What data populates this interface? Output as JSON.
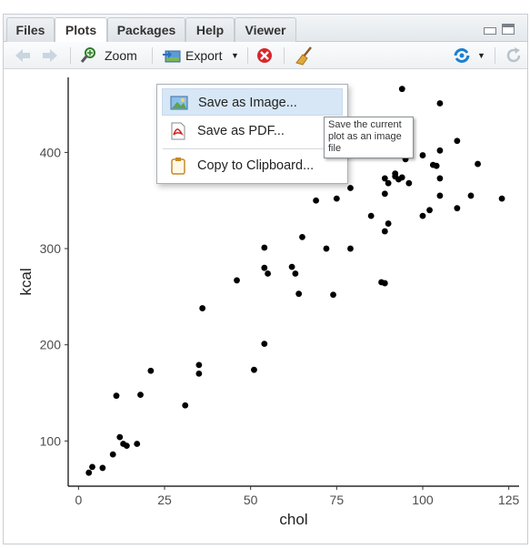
{
  "tabs": [
    {
      "label": "Files",
      "active": false
    },
    {
      "label": "Plots",
      "active": true
    },
    {
      "label": "Packages",
      "active": false
    },
    {
      "label": "Help",
      "active": false
    },
    {
      "label": "Viewer",
      "active": false
    }
  ],
  "toolbar": {
    "zoom_label": "Zoom",
    "export_label": "Export"
  },
  "export_menu": {
    "items": [
      {
        "label": "Save as Image...",
        "icon": "image-icon",
        "highlighted": true
      },
      {
        "label": "Save as PDF...",
        "icon": "pdf-icon",
        "highlighted": false
      },
      {
        "label": "Copy to Clipboard...",
        "icon": "clipboard-icon",
        "highlighted": false
      }
    ]
  },
  "tooltip": {
    "lines": [
      "Save the current",
      "plot as an image",
      "file"
    ]
  },
  "colors": {
    "accent": "#1a7fd0",
    "menu_highlight": "#d7e7f5",
    "points": "#000000"
  },
  "chart_data": {
    "type": "scatter",
    "xlabel": "chol",
    "ylabel": "kcal",
    "xlim": [
      -3,
      128
    ],
    "ylim": [
      53,
      478
    ],
    "xticks": [
      0,
      25,
      50,
      75,
      100,
      125
    ],
    "yticks": [
      100,
      200,
      300,
      400
    ],
    "grid": false,
    "points": [
      [
        3,
        67
      ],
      [
        4,
        73
      ],
      [
        7,
        72
      ],
      [
        10,
        86
      ],
      [
        11,
        147
      ],
      [
        12,
        104
      ],
      [
        13,
        97
      ],
      [
        14,
        95
      ],
      [
        17,
        97
      ],
      [
        18,
        148
      ],
      [
        21,
        173
      ],
      [
        31,
        137
      ],
      [
        35,
        179
      ],
      [
        35,
        170
      ],
      [
        36,
        238
      ],
      [
        46,
        267
      ],
      [
        51,
        174
      ],
      [
        54,
        201
      ],
      [
        54,
        301
      ],
      [
        54,
        280
      ],
      [
        55,
        274
      ],
      [
        62,
        281
      ],
      [
        63,
        274
      ],
      [
        64,
        253
      ],
      [
        65,
        312
      ],
      [
        69,
        350
      ],
      [
        72,
        300
      ],
      [
        74,
        252
      ],
      [
        75,
        352
      ],
      [
        79,
        363
      ],
      [
        79,
        300
      ],
      [
        85,
        334
      ],
      [
        88,
        265
      ],
      [
        89,
        264
      ],
      [
        89,
        357
      ],
      [
        89,
        318
      ],
      [
        89,
        373
      ],
      [
        90,
        326
      ],
      [
        90,
        368
      ],
      [
        92,
        378
      ],
      [
        92,
        375
      ],
      [
        93,
        372
      ],
      [
        94,
        374
      ],
      [
        94,
        466
      ],
      [
        95,
        393
      ],
      [
        96,
        368
      ],
      [
        100,
        397
      ],
      [
        100,
        334
      ],
      [
        102,
        340
      ],
      [
        103,
        387
      ],
      [
        104,
        386
      ],
      [
        105,
        451
      ],
      [
        105,
        402
      ],
      [
        105,
        373
      ],
      [
        105,
        355
      ],
      [
        110,
        412
      ],
      [
        110,
        342
      ],
      [
        114,
        355
      ],
      [
        116,
        388
      ],
      [
        123,
        352
      ]
    ]
  }
}
